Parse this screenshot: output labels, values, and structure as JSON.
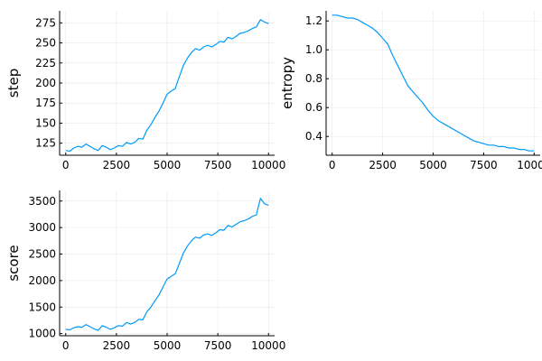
{
  "colors": {
    "series": "#009AFA",
    "axis": "#000000",
    "background": "#FFFFFF"
  },
  "chart_data": [
    {
      "type": "line",
      "title": "",
      "xlabel": "",
      "ylabel": "step",
      "xlim": [
        -300,
        10300
      ],
      "ylim": [
        110,
        290
      ],
      "xticks": [
        0,
        2500,
        5000,
        7500,
        10000
      ],
      "xtick_labels": [
        "0",
        "2500",
        "5000",
        "7500",
        "10000"
      ],
      "yticks": [
        125,
        150,
        175,
        200,
        225,
        250,
        275
      ],
      "ytick_labels": [
        "125",
        "150",
        "175",
        "200",
        "225",
        "250",
        "275"
      ],
      "grid": true,
      "legend": "none",
      "series": [
        {
          "x": [
            0,
            200,
            400,
            600,
            800,
            1000,
            1200,
            1400,
            1600,
            1800,
            2000,
            2200,
            2400,
            2600,
            2800,
            3000,
            3200,
            3400,
            3600,
            3800,
            4000,
            4200,
            4400,
            4600,
            4800,
            5000,
            5200,
            5400,
            5600,
            5800,
            6000,
            6200,
            6400,
            6600,
            6800,
            7000,
            7200,
            7400,
            7600,
            7800,
            8000,
            8200,
            8400,
            8600,
            8800,
            9000,
            9200,
            9400,
            9600,
            9800,
            10000
          ],
          "values": [
            116,
            115,
            119,
            121,
            120,
            124,
            121,
            118,
            116,
            122,
            120,
            117,
            119,
            122,
            121,
            126,
            124,
            126,
            131,
            130,
            141,
            148,
            157,
            165,
            175,
            186,
            190,
            193,
            208,
            222,
            231,
            238,
            243,
            241,
            245,
            247,
            245,
            248,
            252,
            251,
            257,
            255,
            258,
            262,
            263,
            265,
            268,
            270,
            279,
            276,
            274
          ]
        }
      ]
    },
    {
      "type": "line",
      "title": "",
      "xlabel": "",
      "ylabel": "entropy",
      "xlim": [
        -300,
        10300
      ],
      "ylim": [
        0.27,
        1.27
      ],
      "xticks": [
        0,
        2500,
        5000,
        7500,
        10000
      ],
      "xtick_labels": [
        "0",
        "2500",
        "5000",
        "7500",
        "10000"
      ],
      "yticks": [
        0.4,
        0.6,
        0.8,
        1.0,
        1.2
      ],
      "ytick_labels": [
        "0.4",
        "0.6",
        "0.8",
        "1.0",
        "1.2"
      ],
      "grid": true,
      "legend": "none",
      "series": [
        {
          "x": [
            0,
            250,
            500,
            750,
            1000,
            1250,
            1500,
            1750,
            2000,
            2250,
            2500,
            2750,
            3000,
            3250,
            3500,
            3750,
            4000,
            4250,
            4500,
            4750,
            5000,
            5250,
            5500,
            5750,
            6000,
            6250,
            6500,
            6750,
            7000,
            7250,
            7500,
            7750,
            8000,
            8250,
            8500,
            8750,
            9000,
            9250,
            9500,
            9750,
            10000
          ],
          "values": [
            1.24,
            1.24,
            1.23,
            1.22,
            1.22,
            1.21,
            1.19,
            1.17,
            1.15,
            1.12,
            1.08,
            1.04,
            0.96,
            0.89,
            0.82,
            0.75,
            0.71,
            0.67,
            0.63,
            0.58,
            0.54,
            0.51,
            0.49,
            0.47,
            0.45,
            0.43,
            0.41,
            0.39,
            0.37,
            0.36,
            0.35,
            0.34,
            0.34,
            0.33,
            0.33,
            0.32,
            0.32,
            0.31,
            0.31,
            0.3,
            0.3
          ]
        }
      ]
    },
    {
      "type": "line",
      "title": "",
      "xlabel": "",
      "ylabel": "score",
      "xlim": [
        -300,
        10300
      ],
      "ylim": [
        960,
        3700
      ],
      "xticks": [
        0,
        2500,
        5000,
        7500,
        10000
      ],
      "xtick_labels": [
        "0",
        "2500",
        "5000",
        "7500",
        "10000"
      ],
      "yticks": [
        1000,
        1500,
        2000,
        2500,
        3000,
        3500
      ],
      "ytick_labels": [
        "1000",
        "1500",
        "2000",
        "2500",
        "3000",
        "3500"
      ],
      "grid": true,
      "legend": "none",
      "series": [
        {
          "x": [
            0,
            200,
            400,
            600,
            800,
            1000,
            1200,
            1400,
            1600,
            1800,
            2000,
            2200,
            2400,
            2600,
            2800,
            3000,
            3200,
            3400,
            3600,
            3800,
            4000,
            4200,
            4400,
            4600,
            4800,
            5000,
            5200,
            5400,
            5600,
            5800,
            6000,
            6200,
            6400,
            6600,
            6800,
            7000,
            7200,
            7400,
            7600,
            7800,
            8000,
            8200,
            8400,
            8600,
            8800,
            9000,
            9200,
            9400,
            9600,
            9800,
            10000
          ],
          "values": [
            1080,
            1070,
            1110,
            1130,
            1120,
            1170,
            1130,
            1090,
            1060,
            1150,
            1120,
            1080,
            1110,
            1150,
            1140,
            1210,
            1180,
            1210,
            1270,
            1260,
            1410,
            1500,
            1620,
            1730,
            1880,
            2030,
            2080,
            2130,
            2320,
            2520,
            2650,
            2750,
            2820,
            2800,
            2860,
            2880,
            2850,
            2900,
            2960,
            2950,
            3040,
            3010,
            3060,
            3110,
            3130,
            3160,
            3210,
            3240,
            3550,
            3450,
            3420
          ]
        }
      ]
    }
  ]
}
